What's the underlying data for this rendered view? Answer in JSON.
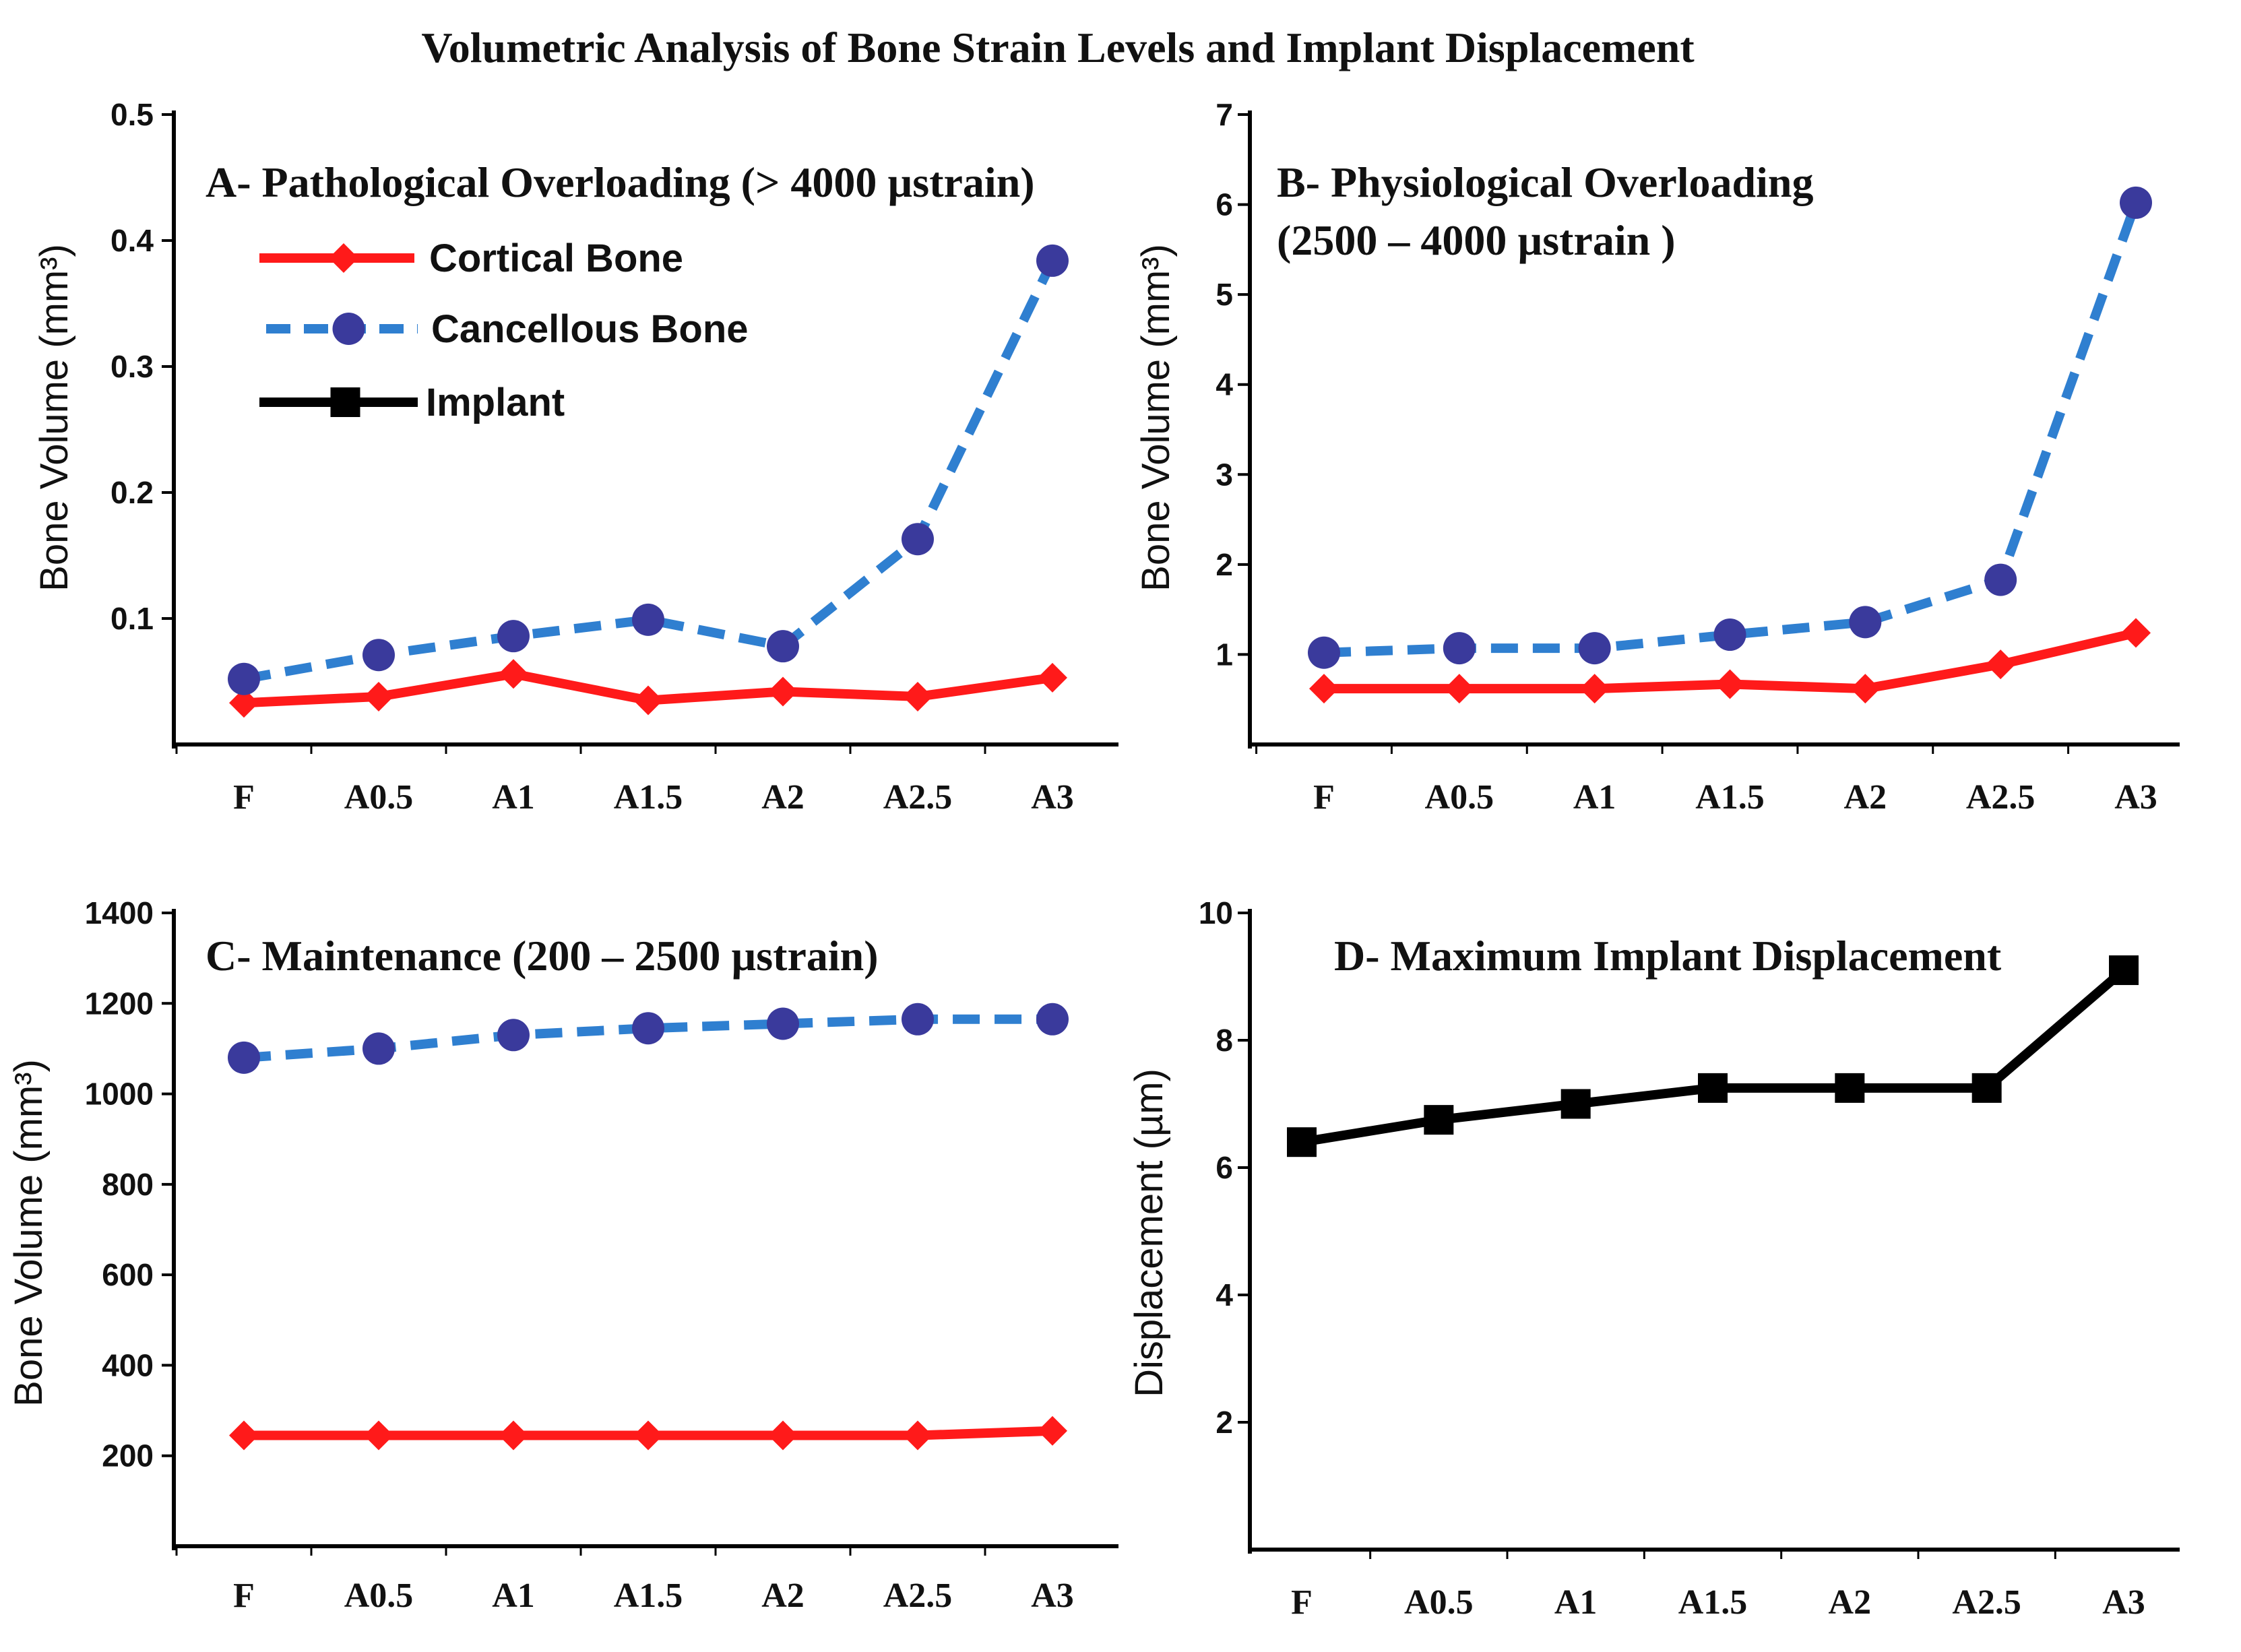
{
  "figure_title": "Volumetric Analysis   of Bone Strain Levels and Implant Displacement",
  "legend": [
    {
      "name": "Cortical Bone",
      "color": "#ff1a1a",
      "marker": "diamond",
      "dash": "solid"
    },
    {
      "name": "Cancellous Bone",
      "color": "#2f7fd0",
      "marker": "circle",
      "marker_color": "#3a3a9c",
      "dash": "dashed"
    },
    {
      "name": "Implant",
      "color": "#000000",
      "marker": "square",
      "dash": "solid"
    }
  ],
  "chart_data": [
    {
      "id": "A",
      "type": "line",
      "title": "A- Pathological Overloading (> 4000 µstrain)",
      "ylabel": "Bone Volume (mm³)",
      "xlabel": "",
      "categories": [
        "F",
        "A0.5",
        "A1",
        "A1.5",
        "A2",
        "A2.5",
        "A3"
      ],
      "ylim": [
        0,
        0.5
      ],
      "yticks": [
        0.1,
        0.2,
        0.3,
        0.4,
        0.5
      ],
      "ytick_labels": [
        "0.1",
        "0.2",
        "0.3",
        "0.4",
        "0.5"
      ],
      "series": [
        {
          "name": "Cortical Bone",
          "values": [
            0.033,
            0.038,
            0.056,
            0.035,
            0.042,
            0.038,
            0.053
          ]
        },
        {
          "name": "Cancellous Bone",
          "values": [
            0.052,
            0.071,
            0.086,
            0.099,
            0.078,
            0.163,
            0.384
          ]
        }
      ]
    },
    {
      "id": "B",
      "type": "line",
      "title": "B- Physiological Overloading",
      "title_line2": "(2500 – 4000 µstrain )",
      "ylabel": "Bone Volume (mm³)",
      "xlabel": "",
      "categories": [
        "F",
        "A0.5",
        "A1",
        "A1.5",
        "A2",
        "A2.5",
        "A3"
      ],
      "ylim": [
        0,
        7
      ],
      "yticks": [
        1,
        2,
        3,
        4,
        5,
        6,
        7
      ],
      "ytick_labels": [
        "1",
        "2",
        "3",
        "4",
        "5",
        "6",
        "7"
      ],
      "series": [
        {
          "name": "Cortical Bone",
          "values": [
            0.62,
            0.62,
            0.62,
            0.67,
            0.62,
            0.89,
            1.24
          ]
        },
        {
          "name": "Cancellous Bone",
          "values": [
            1.02,
            1.07,
            1.07,
            1.22,
            1.36,
            1.83,
            6.02
          ]
        }
      ]
    },
    {
      "id": "C",
      "type": "line",
      "title": "C- Maintenance (200 – 2500 µstrain)",
      "ylabel": "Bone Volume (mm³)",
      "xlabel": "",
      "categories": [
        "F",
        "A0.5",
        "A1",
        "A1.5",
        "A2",
        "A2.5",
        "A3"
      ],
      "ylim": [
        0,
        1400
      ],
      "yticks": [
        200,
        400,
        600,
        800,
        1000,
        1200,
        1400
      ],
      "ytick_labels": [
        "200",
        "400",
        "600",
        "800",
        "1000",
        "1200",
        "1400"
      ],
      "series": [
        {
          "name": "Cortical Bone",
          "values": [
            245,
            245,
            245,
            245,
            245,
            245,
            255
          ]
        },
        {
          "name": "Cancellous Bone",
          "values": [
            1080,
            1100,
            1130,
            1145,
            1155,
            1165,
            1165
          ]
        }
      ]
    },
    {
      "id": "D",
      "type": "line",
      "title": "D- Maximum Implant Displacement",
      "ylabel": "Displacement (µm)",
      "xlabel": "",
      "categories": [
        "F",
        "A0.5",
        "A1",
        "A1.5",
        "A2",
        "A2.5",
        "A3"
      ],
      "ylim": [
        0,
        10
      ],
      "yticks": [
        2,
        4,
        6,
        8,
        10
      ],
      "ytick_labels": [
        "2",
        "4",
        "6",
        "8",
        "10"
      ],
      "series": [
        {
          "name": "Implant",
          "values": [
            6.4,
            6.75,
            7.0,
            7.25,
            7.25,
            7.25,
            9.1
          ]
        }
      ]
    }
  ]
}
